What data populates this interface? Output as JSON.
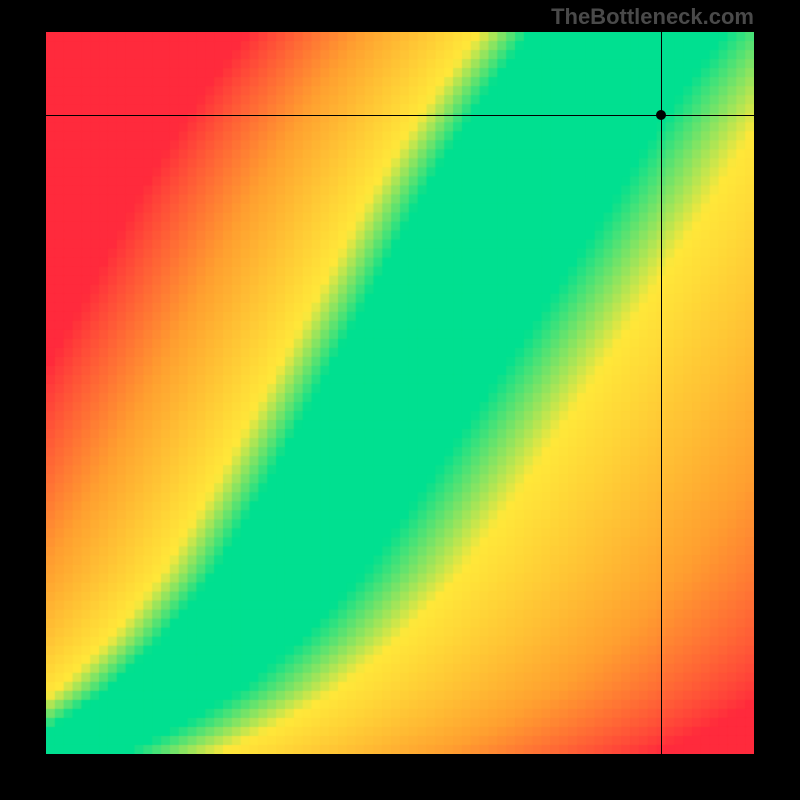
{
  "watermark": "TheBottleneck.com",
  "chart": {
    "type": "heatmap",
    "width_cells": 80,
    "height_cells": 80,
    "background_color": "#000000",
    "colors": {
      "red": "#ff2a3c",
      "orange": "#ffa030",
      "yellow": "#ffe83a",
      "green": "#00e090"
    },
    "curve": {
      "comment": "Green optimal band follows a nonlinear curve from bottom-left to upper-mid-right",
      "points_xy_normalized": [
        [
          0.0,
          1.0
        ],
        [
          0.08,
          0.96
        ],
        [
          0.16,
          0.91
        ],
        [
          0.24,
          0.84
        ],
        [
          0.32,
          0.75
        ],
        [
          0.4,
          0.63
        ],
        [
          0.48,
          0.5
        ],
        [
          0.56,
          0.37
        ],
        [
          0.62,
          0.27
        ],
        [
          0.68,
          0.17
        ],
        [
          0.74,
          0.08
        ],
        [
          0.8,
          0.0
        ]
      ],
      "band_half_width": 0.045
    },
    "crosshair": {
      "x_normalized": 0.868,
      "y_normalized": 0.115
    },
    "marker": {
      "x_normalized": 0.868,
      "y_normalized": 0.115
    }
  }
}
